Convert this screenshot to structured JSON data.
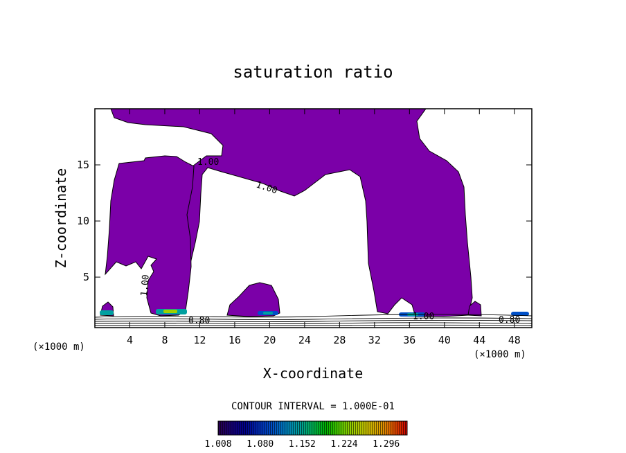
{
  "chart_data": {
    "type": "contour",
    "title": "saturation ratio",
    "xlabel": "X-coordinate",
    "ylabel": "Z-coordinate",
    "x_unit_left": "(×1000 m)",
    "x_unit_right": "(×1000 m)",
    "xlim": [
      0,
      50
    ],
    "ylim": [
      0.5,
      20
    ],
    "x_ticks": [
      4,
      8,
      12,
      16,
      20,
      24,
      28,
      32,
      36,
      40,
      44,
      48
    ],
    "y_ticks": [
      5,
      10,
      15
    ],
    "fill_color": "#7b00a8",
    "contour_labels": [
      "1.00",
      "1.00",
      "1.00",
      "0.80",
      "1.00",
      "0.80"
    ],
    "contour_interval_text": "CONTOUR INTERVAL = 1.000E-01",
    "colorbar": {
      "labels": [
        "1.008",
        "1.080",
        "1.152",
        "1.224",
        "1.296"
      ],
      "range": [
        1.008,
        1.332
      ],
      "colors": [
        "#2a0050",
        "#000090",
        "#0050c8",
        "#00a0a0",
        "#00b400",
        "#a0d000",
        "#e0a000",
        "#d00000"
      ]
    }
  }
}
